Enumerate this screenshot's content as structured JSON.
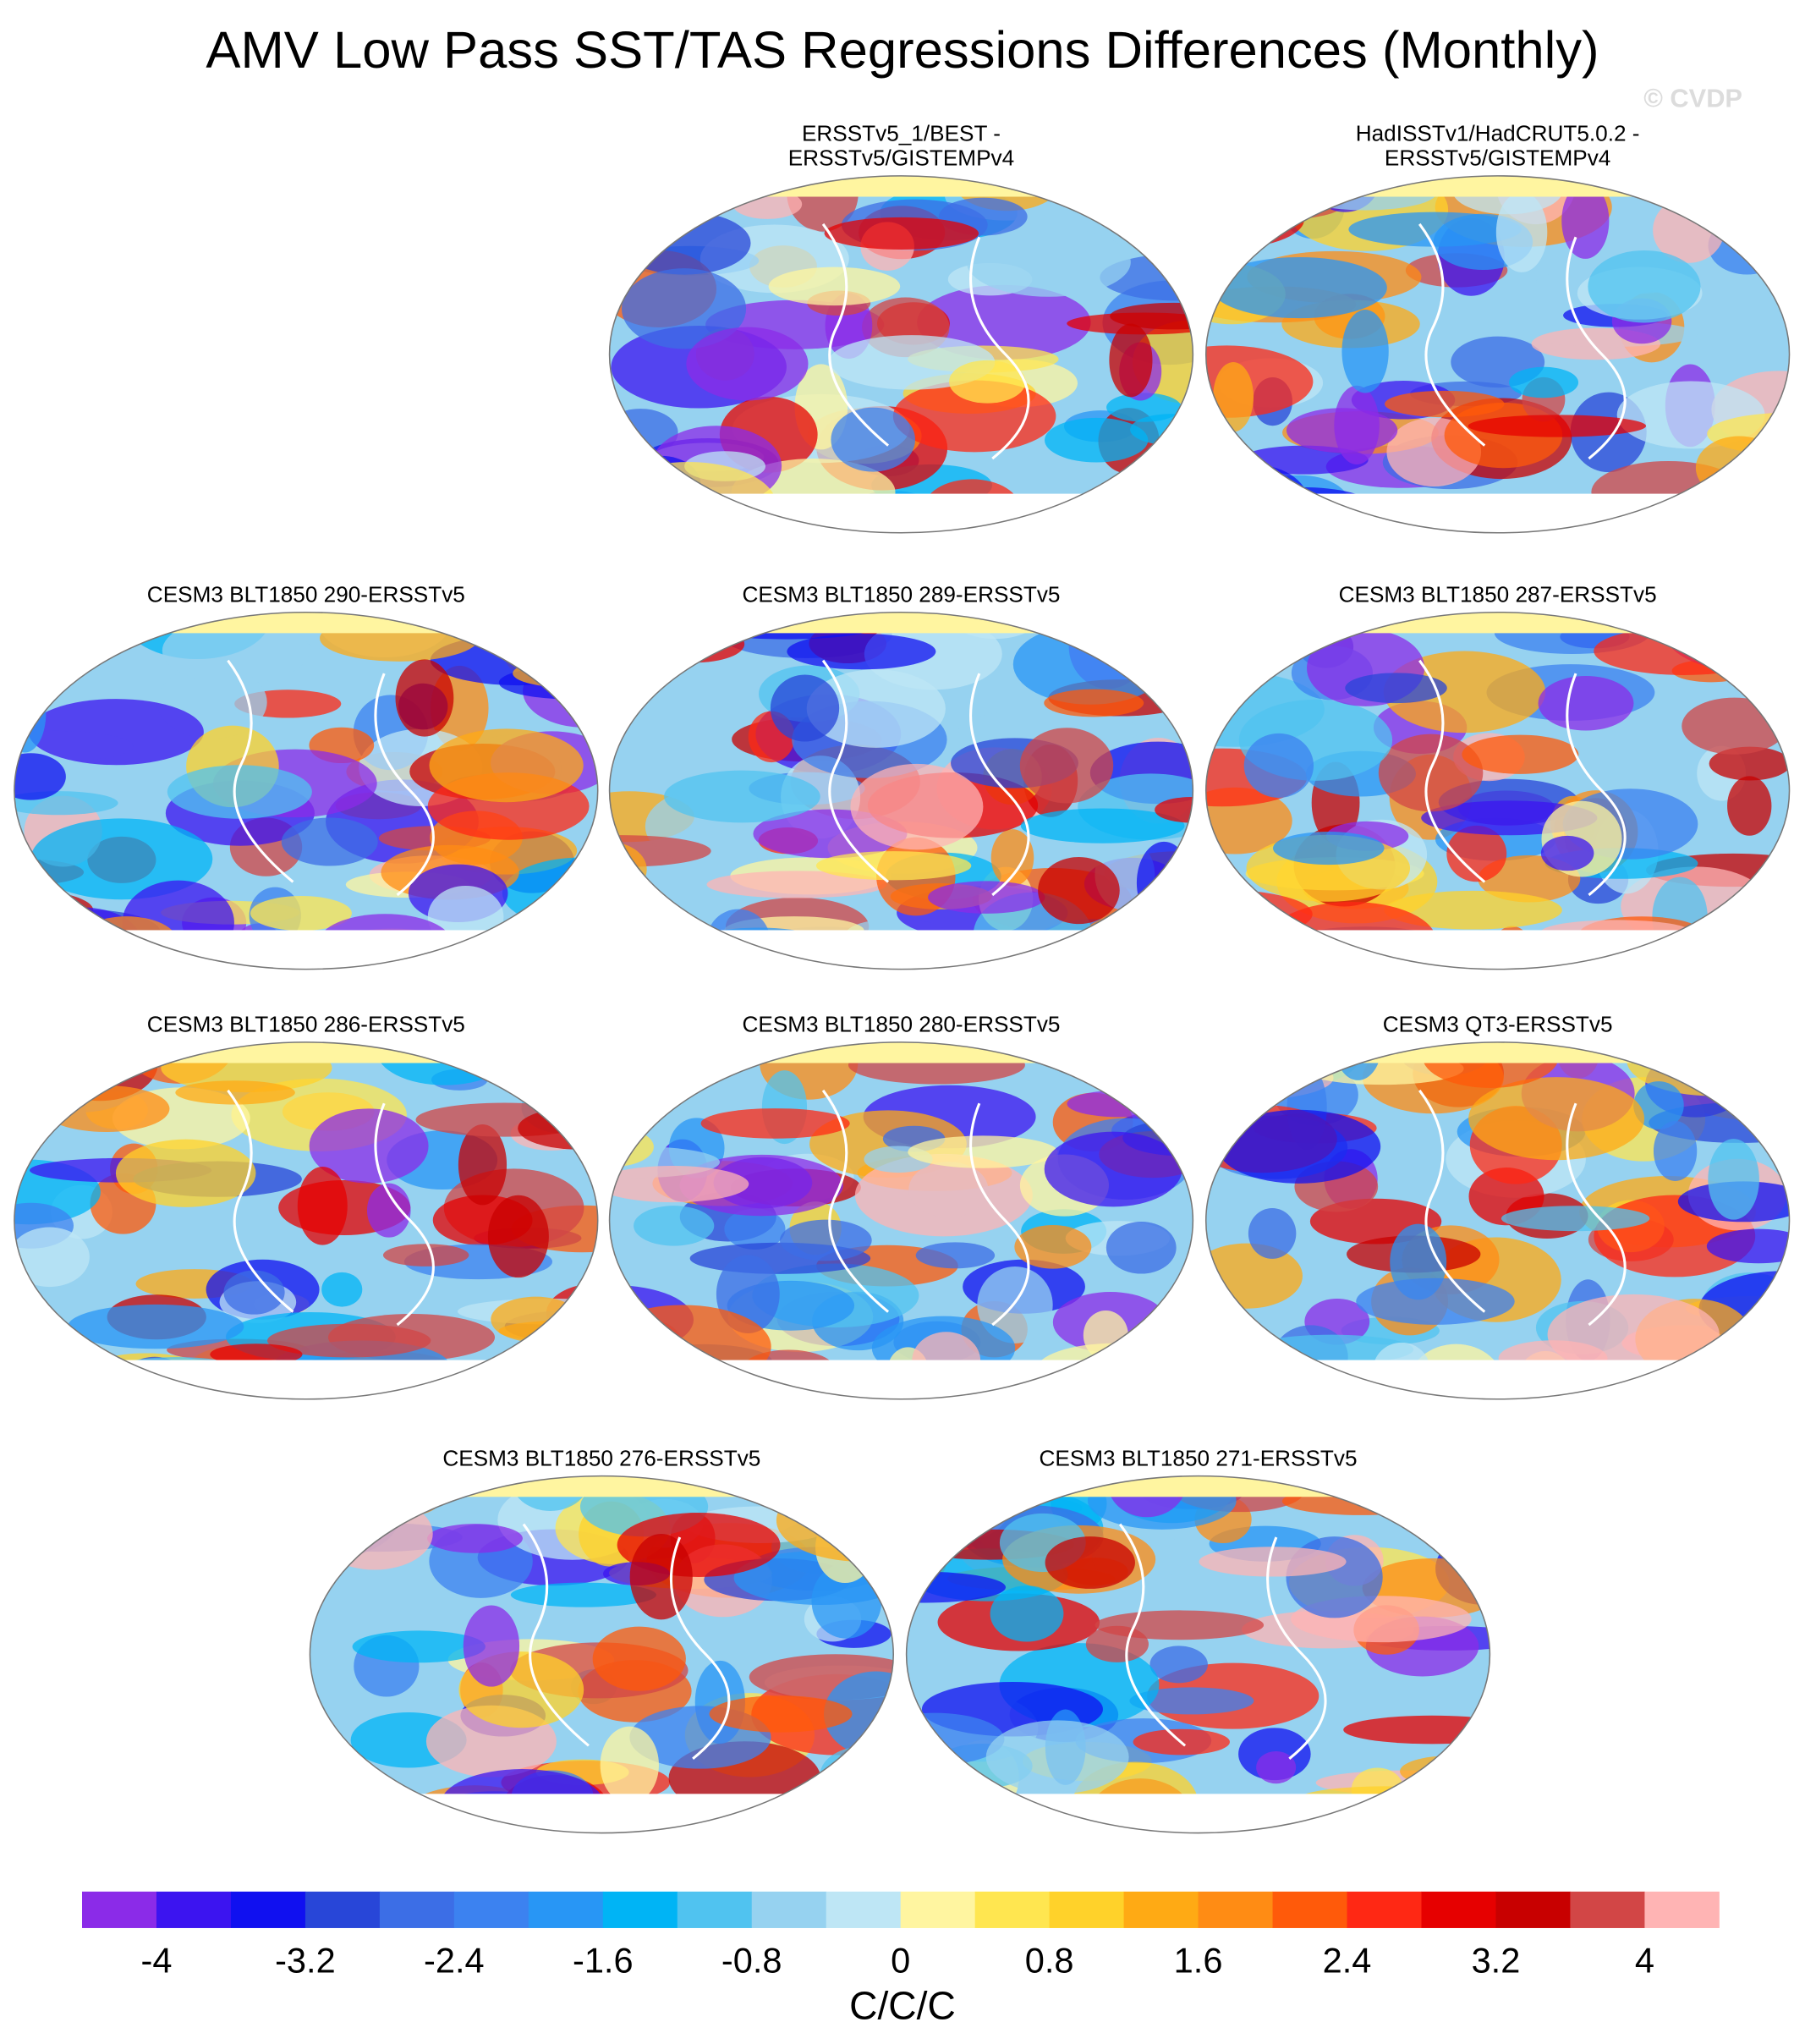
{
  "title": "AMV Low Pass SST/TAS Regressions Differences (Monthly)",
  "watermark": "© CVDP",
  "panels": [
    {
      "title": [
        "ERSSTv5_1/BEST -",
        "ERSSTv5/GISTEMPv4"
      ]
    },
    {
      "title": [
        "HadISSTv1/HadCRUT5.0.2 -",
        "ERSSTv5/GISTEMPv4"
      ]
    },
    {
      "title": [
        "CESM3 BLT1850 290-ERSSTv5"
      ]
    },
    {
      "title": [
        "CESM3 BLT1850 289-ERSSTv5"
      ]
    },
    {
      "title": [
        "CESM3 BLT1850 287-ERSSTv5"
      ]
    },
    {
      "title": [
        "CESM3 BLT1850 286-ERSSTv5"
      ]
    },
    {
      "title": [
        "CESM3 BLT1850 280-ERSSTv5"
      ]
    },
    {
      "title": [
        "CESM3 QT3-ERSSTv5"
      ]
    },
    {
      "title": [
        "CESM3 BLT1850 276-ERSSTv5"
      ]
    },
    {
      "title": [
        "CESM3 BLT1850 271-ERSSTv5"
      ]
    }
  ],
  "colorbar": {
    "colors": [
      "#8b2be8",
      "#3c14f0",
      "#1010f0",
      "#2846d8",
      "#3c6ee6",
      "#3c82f0",
      "#2896f5",
      "#00b4f5",
      "#50c3f0",
      "#96d2f0",
      "#bee6f5",
      "#fff5a0",
      "#ffe650",
      "#ffd22a",
      "#ffaa14",
      "#ff8c14",
      "#ff5a0a",
      "#ff2814",
      "#e60000",
      "#c80000",
      "#d24646",
      "#ffb4b4"
    ],
    "lim": [
      -4.4,
      4.4
    ],
    "ticks": [
      -4,
      -3.2,
      -2.4,
      -1.6,
      -0.8,
      0,
      0.8,
      1.6,
      2.4,
      3.2,
      4
    ],
    "label": "C/C/C"
  }
}
